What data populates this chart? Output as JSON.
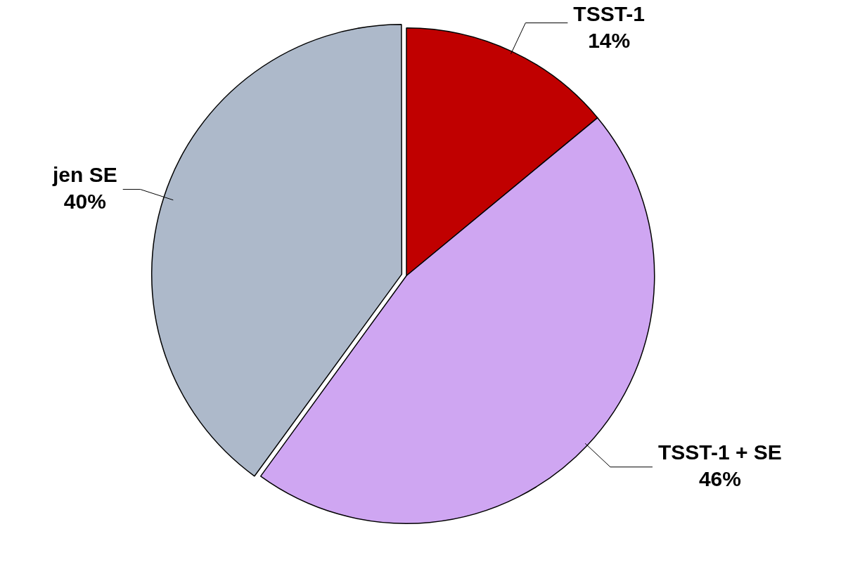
{
  "chart_data": {
    "type": "pie",
    "categories": [
      "TSST-1",
      "TSST-1 + SE",
      "jen SE"
    ],
    "values": [
      14,
      46,
      40
    ],
    "value_labels": [
      "14%",
      "46%",
      "40%"
    ],
    "colors": [
      "#c00000",
      "#cfa6f2",
      "#adb9ca"
    ],
    "legend": false
  }
}
